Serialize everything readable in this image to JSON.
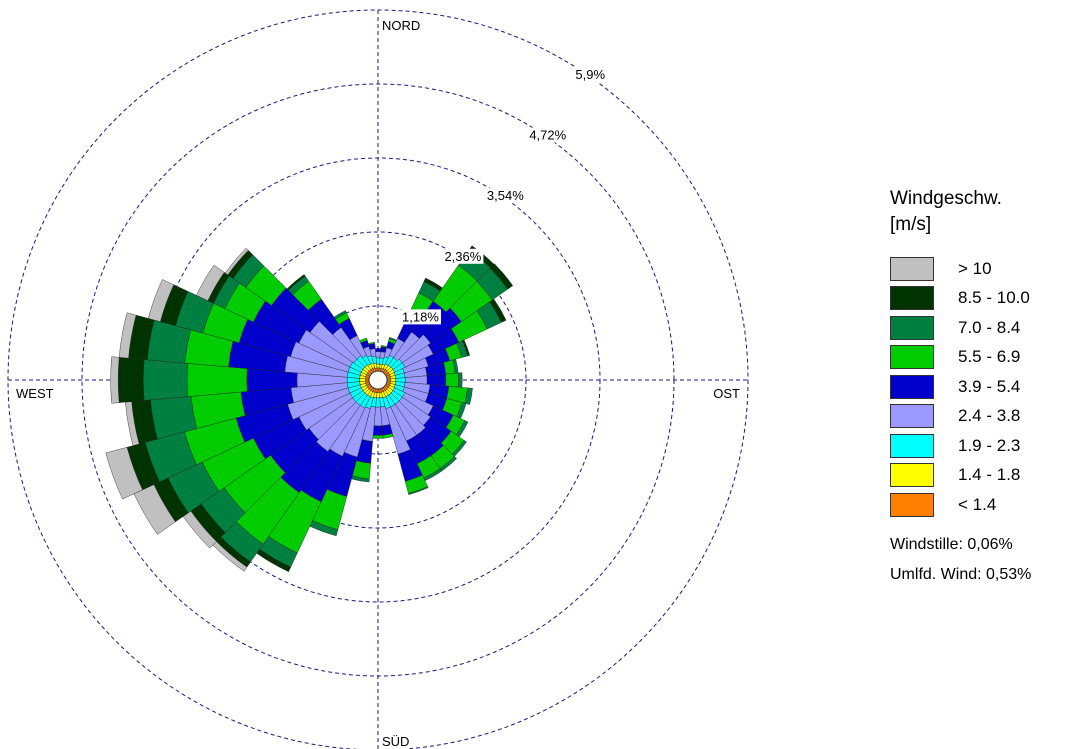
{
  "chart_data": {
    "type": "windrose",
    "title": "",
    "unit_percent": "%",
    "directions": {
      "north": "NORD",
      "east": "OST",
      "south": "SÜD",
      "west": "WEST"
    },
    "rings": [
      1.18,
      2.36,
      3.54,
      4.72,
      5.9
    ],
    "ring_labels": [
      "1,18%",
      "2,36%",
      "3,54%",
      "4,72%",
      "5,9%"
    ],
    "sector_count": 36,
    "sector_start_deg": 0,
    "classes": [
      {
        "label": "< 1.4",
        "color": "#ff8000"
      },
      {
        "label": "1.4 - 1.8",
        "color": "#ffff00"
      },
      {
        "label": "1.9 - 2.3",
        "color": "#00ffff"
      },
      {
        "label": "2.4 - 3.8",
        "color": "#9999ff"
      },
      {
        "label": "3.9 - 5.4",
        "color": "#0000cc"
      },
      {
        "label": "5.5 - 6.9",
        "color": "#00cc00"
      },
      {
        "label": "7.0 - 8.4",
        "color": "#008040"
      },
      {
        "label": "8.5 - 10.0",
        "color": "#003300"
      },
      {
        "label": "> 10",
        "color": "#c0c0c0"
      }
    ],
    "sectors": [
      {
        "dir": 0,
        "values": [
          0.05,
          0.06,
          0.1,
          0.1,
          0.05,
          0.0,
          0.0,
          0.0,
          0.0
        ]
      },
      {
        "dir": 10,
        "values": [
          0.05,
          0.06,
          0.1,
          0.1,
          0.08,
          0.02,
          0.0,
          0.0,
          0.0
        ]
      },
      {
        "dir": 20,
        "values": [
          0.05,
          0.07,
          0.12,
          0.15,
          0.1,
          0.05,
          0.02,
          0.0,
          0.0
        ]
      },
      {
        "dir": 30,
        "values": [
          0.06,
          0.08,
          0.15,
          0.3,
          0.35,
          0.45,
          0.2,
          0.06,
          0.0
        ]
      },
      {
        "dir": 40,
        "values": [
          0.06,
          0.08,
          0.15,
          0.5,
          0.6,
          0.7,
          0.3,
          0.08,
          0.0
        ]
      },
      {
        "dir": 50,
        "values": [
          0.06,
          0.09,
          0.18,
          0.55,
          0.6,
          0.6,
          0.3,
          0.1,
          0.0
        ]
      },
      {
        "dir": 60,
        "values": [
          0.06,
          0.09,
          0.18,
          0.5,
          0.45,
          0.5,
          0.25,
          0.08,
          0.0
        ]
      },
      {
        "dir": 70,
        "values": [
          0.06,
          0.08,
          0.15,
          0.4,
          0.35,
          0.2,
          0.1,
          0.03,
          0.0
        ]
      },
      {
        "dir": 80,
        "values": [
          0.06,
          0.08,
          0.15,
          0.35,
          0.3,
          0.15,
          0.05,
          0.0,
          0.0
        ]
      },
      {
        "dir": 90,
        "values": [
          0.06,
          0.08,
          0.15,
          0.35,
          0.3,
          0.2,
          0.06,
          0.0,
          0.0
        ]
      },
      {
        "dir": 100,
        "values": [
          0.06,
          0.08,
          0.15,
          0.4,
          0.3,
          0.3,
          0.08,
          0.0,
          0.0
        ]
      },
      {
        "dir": 110,
        "values": [
          0.06,
          0.08,
          0.15,
          0.4,
          0.3,
          0.25,
          0.07,
          0.0,
          0.0
        ]
      },
      {
        "dir": 120,
        "values": [
          0.06,
          0.09,
          0.18,
          0.5,
          0.35,
          0.2,
          0.06,
          0.0,
          0.0
        ]
      },
      {
        "dir": 130,
        "values": [
          0.06,
          0.09,
          0.18,
          0.55,
          0.4,
          0.25,
          0.05,
          0.0,
          0.0
        ]
      },
      {
        "dir": 140,
        "values": [
          0.06,
          0.09,
          0.18,
          0.6,
          0.4,
          0.25,
          0.05,
          0.0,
          0.0
        ]
      },
      {
        "dir": 150,
        "values": [
          0.06,
          0.09,
          0.18,
          0.6,
          0.4,
          0.25,
          0.05,
          0.0,
          0.0
        ]
      },
      {
        "dir": 160,
        "values": [
          0.06,
          0.09,
          0.18,
          0.75,
          0.45,
          0.2,
          0.02,
          0.0,
          0.0
        ]
      },
      {
        "dir": 170,
        "values": [
          0.06,
          0.08,
          0.15,
          0.3,
          0.15,
          0.05,
          0.0,
          0.0,
          0.0
        ]
      },
      {
        "dir": 180,
        "values": [
          0.06,
          0.08,
          0.15,
          0.3,
          0.15,
          0.05,
          0.0,
          0.0,
          0.0
        ]
      },
      {
        "dir": 190,
        "values": [
          0.06,
          0.08,
          0.15,
          0.55,
          0.35,
          0.25,
          0.05,
          0.0,
          0.0
        ]
      },
      {
        "dir": 200,
        "values": [
          0.06,
          0.09,
          0.18,
          0.8,
          0.65,
          0.55,
          0.1,
          0.0,
          0.0
        ]
      },
      {
        "dir": 210,
        "values": [
          0.06,
          0.09,
          0.2,
          0.85,
          0.8,
          0.9,
          0.25,
          0.08,
          0.0
        ]
      },
      {
        "dir": 220,
        "values": [
          0.06,
          0.09,
          0.2,
          0.9,
          0.8,
          1.0,
          0.35,
          0.1,
          0.08
        ]
      },
      {
        "dir": 230,
        "values": [
          0.06,
          0.09,
          0.2,
          0.85,
          0.75,
          0.9,
          0.45,
          0.2,
          0.15
        ]
      },
      {
        "dir": 240,
        "values": [
          0.06,
          0.09,
          0.2,
          0.9,
          0.8,
          0.9,
          0.6,
          0.25,
          0.35
        ]
      },
      {
        "dir": 250,
        "values": [
          0.06,
          0.09,
          0.2,
          1.0,
          0.85,
          0.85,
          0.65,
          0.3,
          0.35
        ]
      },
      {
        "dir": 260,
        "values": [
          0.06,
          0.09,
          0.2,
          0.9,
          0.8,
          0.8,
          0.65,
          0.3,
          0.1
        ]
      },
      {
        "dir": 270,
        "values": [
          0.06,
          0.09,
          0.2,
          0.8,
          0.8,
          0.95,
          0.7,
          0.4,
          0.12
        ]
      },
      {
        "dir": 280,
        "values": [
          0.06,
          0.09,
          0.2,
          1.0,
          0.9,
          0.7,
          0.6,
          0.3,
          0.15
        ]
      },
      {
        "dir": 290,
        "values": [
          0.06,
          0.09,
          0.2,
          0.95,
          0.85,
          0.6,
          0.45,
          0.25,
          0.2
        ]
      },
      {
        "dir": 300,
        "values": [
          0.06,
          0.09,
          0.2,
          0.9,
          0.8,
          0.5,
          0.2,
          0.1,
          0.2
        ]
      },
      {
        "dir": 310,
        "values": [
          0.06,
          0.09,
          0.18,
          0.85,
          0.75,
          0.5,
          0.25,
          0.1,
          0.05
        ]
      },
      {
        "dir": 320,
        "values": [
          0.06,
          0.09,
          0.18,
          0.55,
          0.55,
          0.35,
          0.1,
          0.03,
          0.0
        ]
      },
      {
        "dir": 330,
        "values": [
          0.06,
          0.08,
          0.15,
          0.35,
          0.3,
          0.1,
          0.04,
          0.0,
          0.0
        ]
      },
      {
        "dir": 340,
        "values": [
          0.06,
          0.08,
          0.12,
          0.15,
          0.1,
          0.04,
          0.0,
          0.0,
          0.0
        ]
      },
      {
        "dir": 350,
        "values": [
          0.05,
          0.07,
          0.12,
          0.12,
          0.08,
          0.02,
          0.0,
          0.0,
          0.0
        ]
      }
    ]
  },
  "legend": {
    "title_line1": "Windgeschw.",
    "title_line2": "[m/s]",
    "items": [
      {
        "label": "> 10",
        "color": "#c0c0c0"
      },
      {
        "label": "8.5 - 10.0",
        "color": "#003300"
      },
      {
        "label": "7.0 - 8.4",
        "color": "#008040"
      },
      {
        "label": "5.5 - 6.9",
        "color": "#00cc00"
      },
      {
        "label": "3.9 - 5.4",
        "color": "#0000cc"
      },
      {
        "label": "2.4 - 3.8",
        "color": "#9999ff"
      },
      {
        "label": "1.9 - 2.3",
        "color": "#00ffff"
      },
      {
        "label": "1.4 - 1.8",
        "color": "#ffff00"
      },
      {
        "label": "< 1.4",
        "color": "#ff8000"
      }
    ],
    "calm": "Windstille: 0,06%",
    "variable": "Umlfd. Wind: 0,53%"
  }
}
